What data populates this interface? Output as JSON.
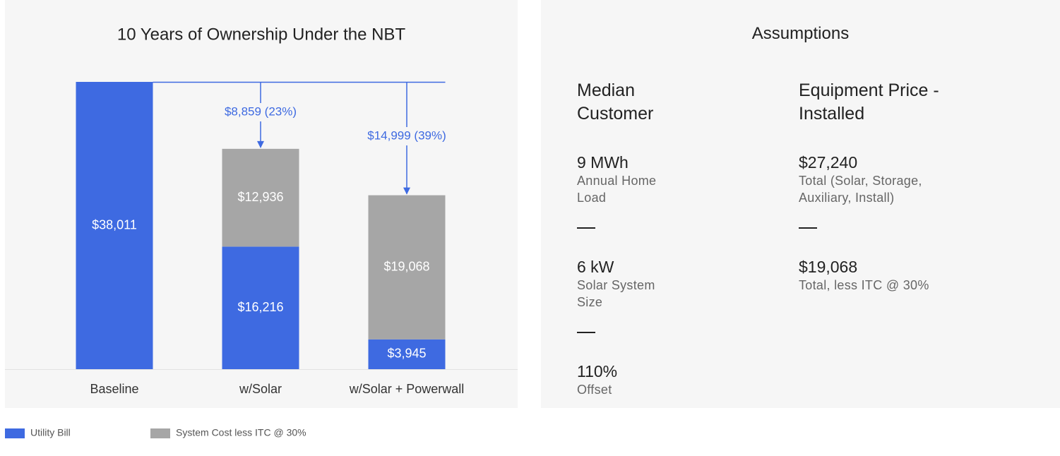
{
  "chart_data": {
    "type": "stacked-bar",
    "title": "10 Years of Ownership Under the NBT",
    "categories": [
      "Baseline",
      "w/Solar",
      "w/Solar + Powerwall"
    ],
    "series": [
      {
        "name": "Utility Bill",
        "color": "#3e6ae1",
        "values": [
          38011,
          16216,
          3945
        ],
        "value_labels": [
          "$38,011",
          "$16,216",
          "$3,945"
        ]
      },
      {
        "name": "System Cost less ITC @ 30%",
        "color": "#a6a6a6",
        "values": [
          null,
          12936,
          19068
        ],
        "value_labels": [
          null,
          "$12,936",
          "$19,068"
        ]
      }
    ],
    "annotations": [
      "$8,859 (23%)",
      "$14,999 (39%)"
    ]
  },
  "assumptions": {
    "title": "Assumptions",
    "columns": [
      {
        "heading": "Median Customer",
        "items": [
          {
            "value": "9 MWh",
            "label": "Annual Home Load"
          },
          {
            "value": "6 kW",
            "label": "Solar System Size"
          },
          {
            "value": "110%",
            "label": "Offset"
          }
        ]
      },
      {
        "heading": "Equipment Price - Installed",
        "items": [
          {
            "value": "$27,240",
            "label": "Total (Solar, Storage, Auxiliary, Install)"
          },
          {
            "value": "$19,068",
            "label": "Total, less ITC @ 30%"
          }
        ]
      }
    ]
  }
}
